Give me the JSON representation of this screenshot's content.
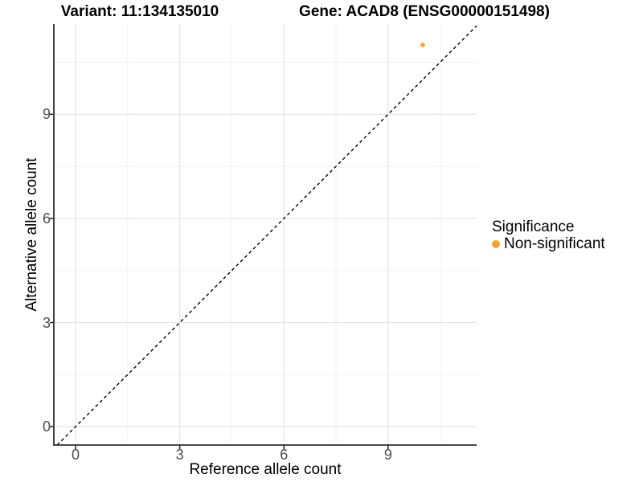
{
  "titles": {
    "left": "Variant: 11:134135010",
    "right": "Gene: ACAD8 (ENSG00000151498)"
  },
  "axes": {
    "x_label": "Reference allele count",
    "y_label": "Alternative allele count"
  },
  "legend": {
    "title": "Significance",
    "items": [
      {
        "label": "Non-significant",
        "color": "#F9A22B"
      }
    ]
  },
  "colors": {
    "background": "#ffffff",
    "major_grid": "#e4e4e4",
    "minor_grid": "#f1f1f1",
    "axis_line": "#2e2e2e",
    "tick_mark": "#2e2e2e",
    "tick_text": "#4d4d4d",
    "identity_line": "#000000",
    "point": "#F9A22B"
  },
  "chart_data": {
    "type": "scatter",
    "title_left": "Variant: 11:134135010",
    "title_right": "Gene: ACAD8 (ENSG00000151498)",
    "xlabel": "Reference allele count",
    "ylabel": "Alternative allele count",
    "points": [
      {
        "x": 10,
        "y": 11,
        "series": "Non-significant",
        "color": "#F9A22B"
      }
    ],
    "reference_line": {
      "type": "identity",
      "equation": "y = x",
      "style": "dashed",
      "color": "#000000"
    },
    "x_ticks": [
      0,
      3,
      6,
      9
    ],
    "y_ticks": [
      0,
      3,
      6,
      9
    ],
    "x_minor_ticks": [
      1.5,
      4.5,
      7.5,
      10.5
    ],
    "y_minor_ticks": [
      1.5,
      4.5,
      7.5,
      10.5
    ],
    "xlim": [
      -0.625,
      11.55
    ],
    "ylim": [
      -0.53,
      11.6
    ],
    "grid": true,
    "legend_position": "right",
    "legend_title": "Significance",
    "legend_entries": [
      "Non-significant"
    ]
  }
}
